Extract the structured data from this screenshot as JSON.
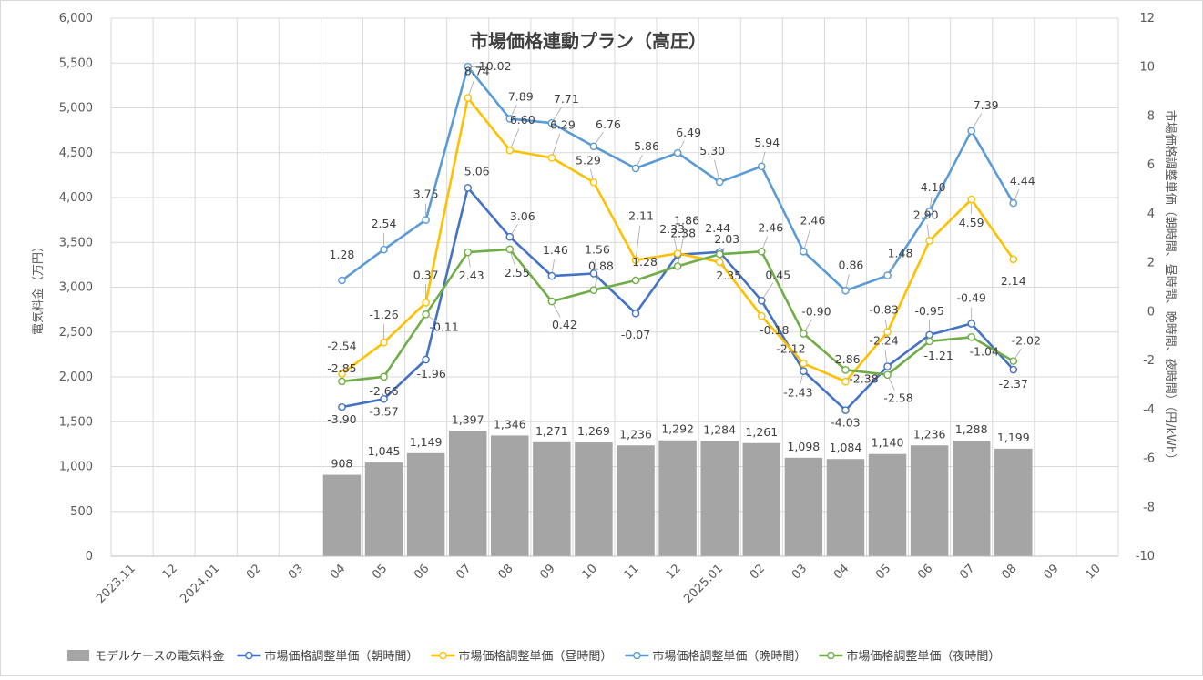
{
  "chart_data": {
    "type": "bar",
    "title": "市場価格連動プラン（高圧）",
    "categories": [
      "2023.11",
      "12",
      "2024.01",
      "02",
      "03",
      "04",
      "05",
      "06",
      "07",
      "08",
      "09",
      "10",
      "11",
      "12",
      "2025.01",
      "02",
      "03",
      "04",
      "05",
      "06",
      "07",
      "08",
      "09",
      "10"
    ],
    "ylabel_left": "電気料金（万円）",
    "ylabel_right": "市場価格調整単価（朝時間、昼時間、晩時間、夜時間）（円/kWh）",
    "ylim_left": [
      0,
      6000
    ],
    "yticks_left": [
      "0",
      "500",
      "1,000",
      "1,500",
      "2,000",
      "2,500",
      "3,000",
      "3,500",
      "4,000",
      "4,500",
      "5,000",
      "5,500",
      "6,000"
    ],
    "ylim_right": [
      -10,
      12
    ],
    "yticks_right": [
      "-10",
      "-8",
      "-6",
      "-4",
      "-2",
      "0",
      "2",
      "4",
      "6",
      "8",
      "10",
      "12"
    ],
    "grid": true,
    "legend_position": "bottom",
    "series": [
      {
        "name": "モデルケースの電気料金",
        "kind": "bar",
        "axis": "left",
        "color": "#a5a5a5",
        "values": [
          null,
          null,
          null,
          null,
          null,
          908,
          1045,
          1149,
          1397,
          1346,
          1271,
          1269,
          1236,
          1292,
          1284,
          1261,
          1098,
          1084,
          1140,
          1236,
          1288,
          1199,
          null,
          null
        ],
        "labels": [
          null,
          null,
          null,
          null,
          null,
          "908",
          "1,045",
          "1,149",
          "1,397",
          "1,346",
          "1,271",
          "1,269",
          "1,236",
          "1,292",
          "1,284",
          "1,261",
          "1,098",
          "1,084",
          "1,140",
          "1,236",
          "1,288",
          "1,199",
          null,
          null
        ]
      },
      {
        "name": "市場価格調整単価（朝時間）",
        "kind": "line",
        "axis": "right",
        "color": "#4472c4",
        "values": [
          null,
          null,
          null,
          null,
          null,
          -3.9,
          -3.57,
          -1.96,
          5.06,
          3.06,
          1.46,
          1.56,
          -0.07,
          2.33,
          2.44,
          0.45,
          -2.43,
          -4.03,
          -2.24,
          -0.95,
          -0.49,
          -2.37,
          null,
          null
        ],
        "labels": [
          null,
          null,
          null,
          null,
          null,
          "-3.90",
          "-3.57",
          "-1.96",
          "5.06",
          "3.06",
          "1.46",
          "1.56",
          "-0.07",
          "2.33",
          "2.44",
          "0.45",
          "-2.43",
          "-4.03",
          "-2.24",
          "-0.95",
          "-0.49",
          "-2.37",
          null,
          null
        ]
      },
      {
        "name": "市場価格調整単価（昼時間）",
        "kind": "line",
        "axis": "right",
        "color": "#ffc000",
        "values": [
          null,
          null,
          null,
          null,
          null,
          -2.54,
          -1.26,
          0.37,
          8.74,
          6.6,
          6.29,
          5.29,
          2.11,
          2.38,
          2.03,
          -0.18,
          -2.12,
          -2.86,
          -0.83,
          2.9,
          4.59,
          2.14,
          null,
          null
        ],
        "labels": [
          null,
          null,
          null,
          null,
          null,
          "-2.54",
          "-1.26",
          "0.37",
          "8.74",
          "6.60",
          "6.29",
          "5.29",
          "2.11",
          "2.38",
          "2.03",
          "-0.18",
          "-2.12",
          "-2.86",
          "-0.83",
          "2.90",
          "4.59",
          "2.14",
          null,
          null
        ]
      },
      {
        "name": "市場価格調整単価（晩時間）",
        "kind": "line",
        "axis": "right",
        "color": "#5b9bd5",
        "values": [
          null,
          null,
          null,
          null,
          null,
          1.28,
          2.54,
          3.75,
          10.02,
          7.89,
          7.71,
          6.76,
          5.86,
          6.49,
          5.3,
          5.94,
          2.46,
          0.86,
          1.48,
          4.1,
          7.39,
          4.44,
          null,
          null
        ],
        "labels": [
          null,
          null,
          null,
          null,
          null,
          "1.28",
          "2.54",
          "3.75",
          "10.02",
          "7.89",
          "7.71",
          "6.76",
          "5.86",
          "6.49",
          "5.30",
          "5.94",
          "2.46",
          "0.86",
          "1.48",
          "4.10",
          "7.39",
          "4.44",
          null,
          null
        ]
      },
      {
        "name": "市場価格調整単価（夜時間）",
        "kind": "line",
        "axis": "right",
        "color": "#70ad47",
        "values": [
          null,
          null,
          null,
          null,
          null,
          -2.85,
          -2.66,
          -0.11,
          2.43,
          2.55,
          0.42,
          0.88,
          1.28,
          1.86,
          2.35,
          2.46,
          -0.9,
          -2.38,
          -2.58,
          -1.21,
          -1.04,
          -2.02,
          null,
          null
        ],
        "labels": [
          null,
          null,
          null,
          null,
          null,
          "-2.85",
          "-2.66",
          "-0.11",
          "2.43",
          "2.55",
          "0.42",
          "0.88",
          "1.28",
          "1.86",
          "2.35",
          "2.46",
          "-0.90",
          "-2.38",
          "-2.58",
          "-1.21",
          "-1.04",
          "-2.02",
          null,
          null
        ]
      }
    ]
  }
}
